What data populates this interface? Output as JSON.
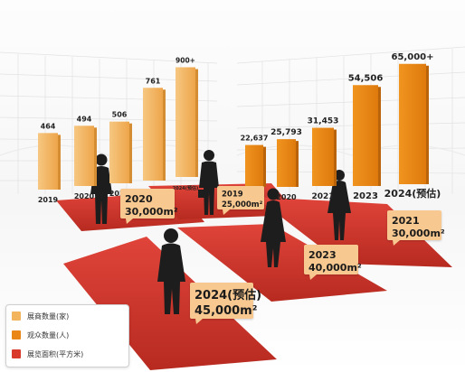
{
  "chart_data": [
    {
      "type": "bar",
      "categories": [
        "2019",
        "2020",
        "2021",
        "2023",
        "2024(预估)"
      ],
      "series": [
        {
          "name": "展商数量(家)",
          "values": [
            464,
            494,
            506,
            761,
            900
          ]
        }
      ],
      "value_labels": [
        "464",
        "494",
        "506",
        "761",
        "900+"
      ],
      "color": "#f2b45c"
    },
    {
      "type": "bar",
      "categories": [
        "2019",
        "2020",
        "2021",
        "2023",
        "2024(预估)"
      ],
      "series": [
        {
          "name": "观众数量(人)",
          "values": [
            22637,
            25793,
            31453,
            54506,
            65000
          ]
        }
      ],
      "value_labels": [
        "22,637",
        "25,793",
        "31,453",
        "54,506",
        "65,000+"
      ],
      "color": "#e98617"
    }
  ],
  "area_badges": [
    {
      "year": "2020",
      "area": "30,000m²"
    },
    {
      "year": "2019",
      "area": "25,000m²"
    },
    {
      "year": "2021",
      "area": "30,000m²"
    },
    {
      "year": "2023",
      "area": "40,000m²"
    },
    {
      "year": "2024(预估)",
      "area": "45,000m²"
    }
  ],
  "legend": {
    "items": [
      {
        "label": "展商数量(家)",
        "color": "#f2b45c"
      },
      {
        "label": "观众数量(人)",
        "color": "#e98617"
      },
      {
        "label": "展览面积(平方米)",
        "color": "#d9392b"
      }
    ]
  },
  "colors": {
    "carpet": "#d9392b",
    "badge": "#f7c890",
    "silhouette": "#1d1d1d"
  }
}
